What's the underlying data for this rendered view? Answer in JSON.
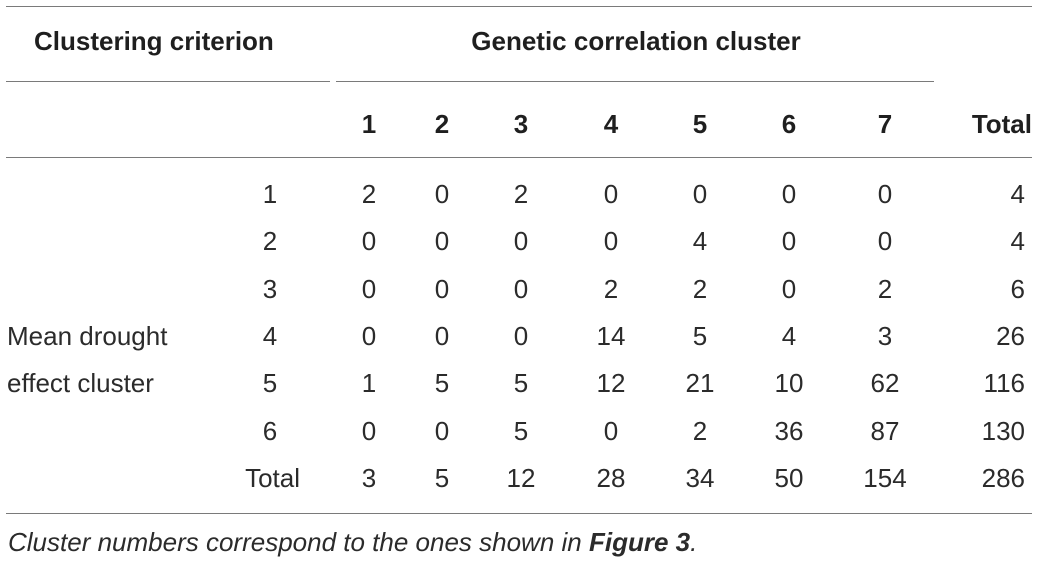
{
  "header": {
    "criterion_label": "Clustering criterion",
    "group_label": "Genetic correlation cluster",
    "columns": [
      "1",
      "2",
      "3",
      "4",
      "5",
      "6",
      "7"
    ],
    "total_label": "Total"
  },
  "stub": {
    "line1": "Mean drought",
    "line2": "effect cluster"
  },
  "rows": [
    {
      "label": "1",
      "values": [
        "2",
        "0",
        "2",
        "0",
        "0",
        "0",
        "0"
      ],
      "total": "4"
    },
    {
      "label": "2",
      "values": [
        "0",
        "0",
        "0",
        "0",
        "4",
        "0",
        "0"
      ],
      "total": "4"
    },
    {
      "label": "3",
      "values": [
        "0",
        "0",
        "0",
        "2",
        "2",
        "0",
        "2"
      ],
      "total": "6"
    },
    {
      "label": "4",
      "values": [
        "0",
        "0",
        "0",
        "14",
        "5",
        "4",
        "3"
      ],
      "total": "26"
    },
    {
      "label": "5",
      "values": [
        "1",
        "5",
        "5",
        "12",
        "21",
        "10",
        "62"
      ],
      "total": "116"
    },
    {
      "label": "6",
      "values": [
        "0",
        "0",
        "5",
        "0",
        "2",
        "36",
        "87"
      ],
      "total": "130"
    },
    {
      "label": "Total",
      "values": [
        "3",
        "5",
        "12",
        "28",
        "34",
        "50",
        "154"
      ],
      "total": "286"
    }
  ],
  "footnote": {
    "text": "Cluster numbers correspond to the ones shown in ",
    "ref": "Figure 3",
    "end": "."
  }
}
